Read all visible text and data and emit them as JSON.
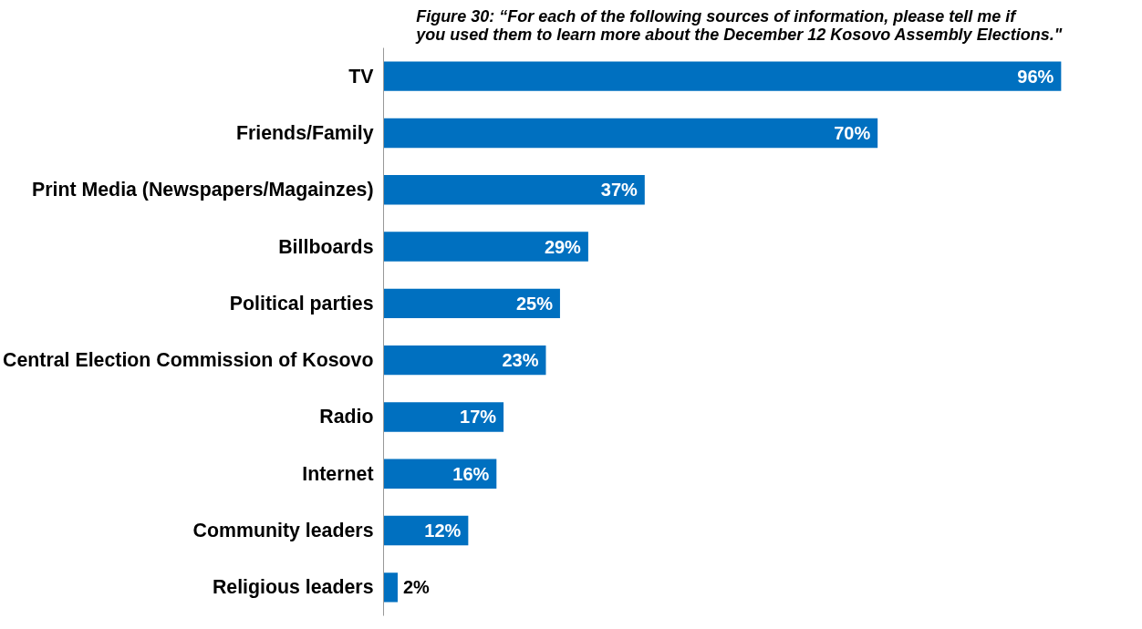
{
  "chart_data": {
    "type": "bar",
    "orientation": "horizontal",
    "title": "Figure 30: “For each of the following sources of information, please tell me if you used them to learn more about the December 12 Kosovo Assembly Elections.\"",
    "categories": [
      "TV",
      "Friends/Family",
      "Print Media (Newspapers/Magainzes)",
      "Billboards",
      "Political parties",
      "Central Election Commission of Kosovo",
      "Radio",
      "Internet",
      "Community leaders",
      "Religious leaders"
    ],
    "values": [
      96,
      70,
      37,
      29,
      25,
      23,
      17,
      16,
      12,
      2
    ],
    "value_labels": [
      "96%",
      "70%",
      "37%",
      "29%",
      "25%",
      "23%",
      "17%",
      "16%",
      "12%",
      "2%"
    ],
    "color": "#0070c0",
    "grid": false,
    "tick_labels": "y"
  }
}
